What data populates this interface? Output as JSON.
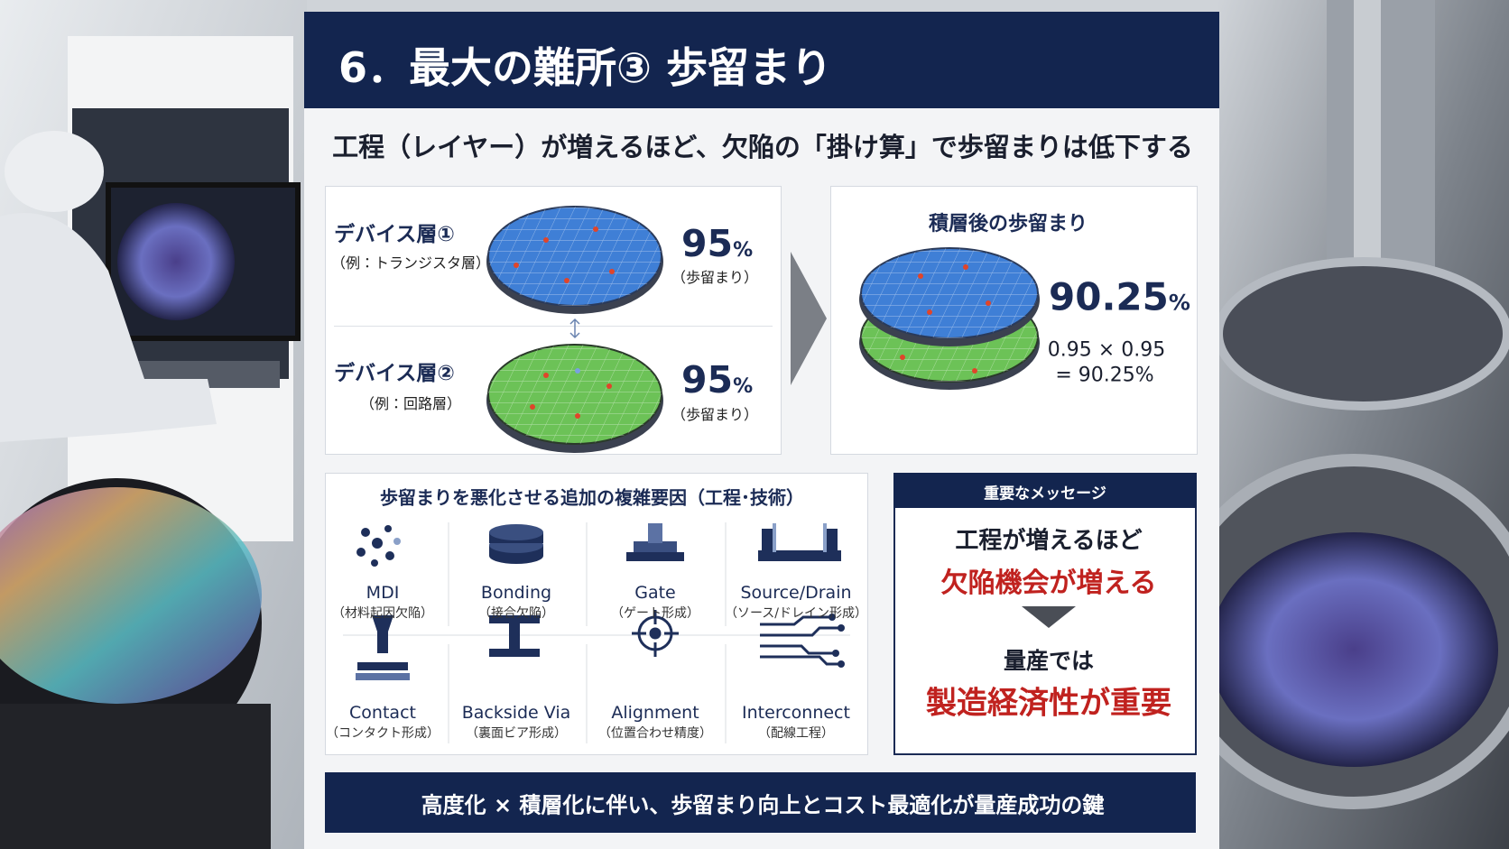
{
  "header": {
    "title": "6．最大の難所③ 歩留まり"
  },
  "subtitle": "工程（レイヤー）が増えるほど、欠陥の「掛け算」で歩留まりは低下する",
  "layers": [
    {
      "name": "デバイス層①",
      "example": "（例：トランジスタ層）",
      "value": "95",
      "unit": "%",
      "caption": "（歩留まり）"
    },
    {
      "name": "デバイス層②",
      "example": "（例：回路層）",
      "value": "95",
      "unit": "%",
      "caption": "（歩留まり）"
    }
  ],
  "result": {
    "title": "積層後の歩留まり",
    "value": "90.25",
    "unit": "%",
    "formula": [
      "0.95 × 0.95",
      "= 90.25%"
    ]
  },
  "factors": {
    "title": "歩留まりを悪化させる追加の複雑要因（工程･技術）",
    "items": [
      {
        "name": "MDI",
        "sub": "（材料起因欠陥）"
      },
      {
        "name": "Bonding",
        "sub": "（接合欠陥）"
      },
      {
        "name": "Gate",
        "sub": "（ゲート形成）"
      },
      {
        "name": "Source/Drain",
        "sub": "（ソース/ドレイン形成）"
      },
      {
        "name": "Contact",
        "sub": "（コンタクト形成）"
      },
      {
        "name": "Backside Via",
        "sub": "（裏面ビア形成）"
      },
      {
        "name": "Alignment",
        "sub": "（位置合わせ精度）"
      },
      {
        "name": "Interconnect",
        "sub": "（配線工程）"
      }
    ]
  },
  "message": {
    "heading": "重要なメッセージ",
    "line1": "工程が増えるほど",
    "line2": "欠陥機会が増える",
    "line3": "量産では",
    "line4": "製造経済性が重要"
  },
  "footer": "高度化 × 積層化に伴い、歩留まり向上とコスト最適化が量産成功の鍵"
}
